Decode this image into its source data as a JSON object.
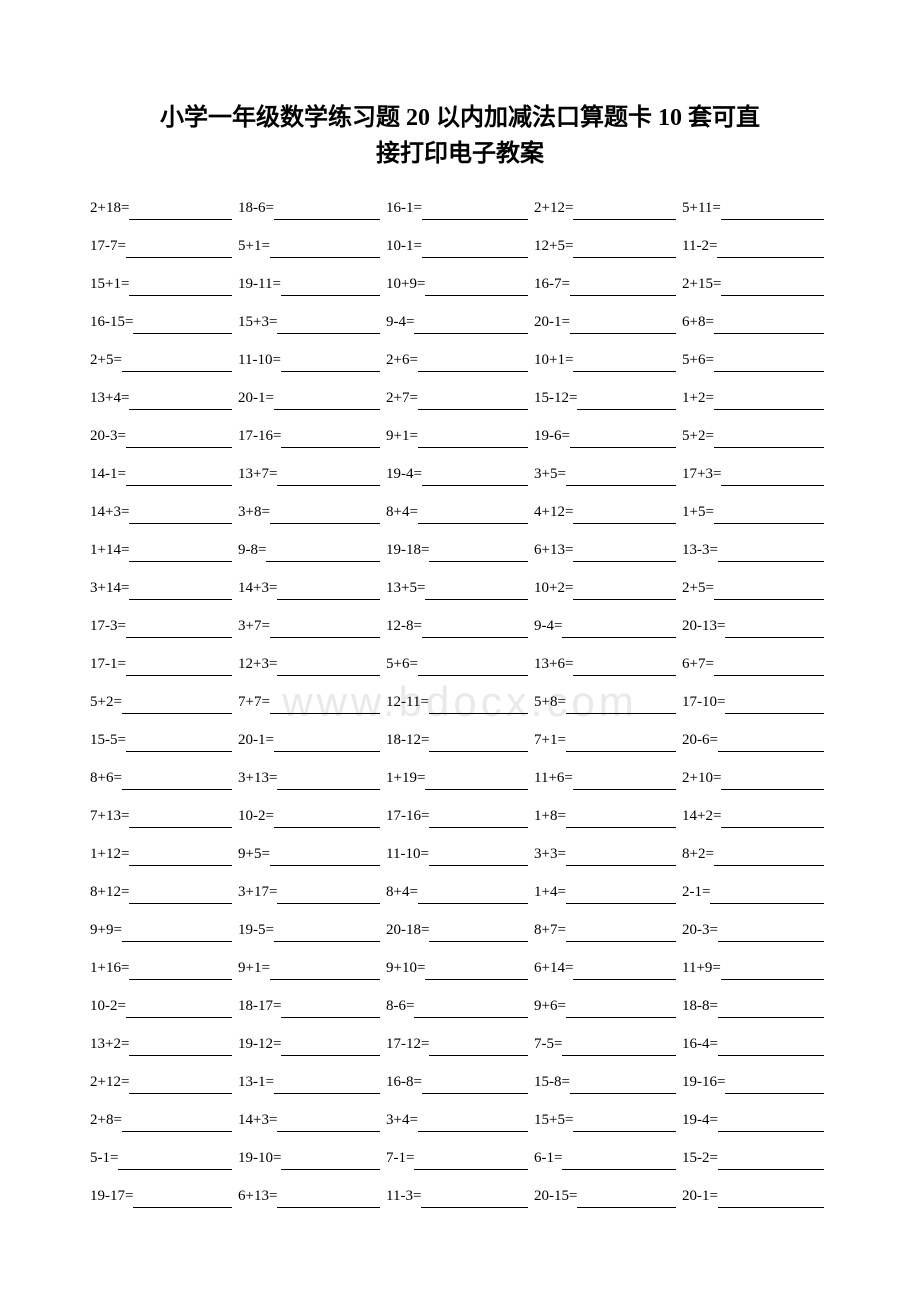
{
  "title_line1": "小学一年级数学练习题 20 以内加减法口算题卡 10 套可直",
  "title_line2": "接打印电子教案",
  "watermark": "www.bdocx.com",
  "rows": [
    [
      "2+18=",
      "18-6=",
      "16-1=",
      "2+12=",
      "5+11="
    ],
    [
      "17-7=",
      "5+1=",
      "10-1=",
      "12+5=",
      "11-2="
    ],
    [
      "15+1=",
      "19-11=",
      "10+9=",
      "16-7=",
      "2+15="
    ],
    [
      "16-15=",
      "15+3=",
      "9-4=",
      "20-1=",
      "6+8="
    ],
    [
      "2+5=",
      "11-10=",
      "2+6=",
      "10+1=",
      "5+6="
    ],
    [
      "13+4=",
      "20-1=",
      "2+7=",
      "15-12=",
      "1+2="
    ],
    [
      "20-3=",
      "17-16=",
      "9+1=",
      "19-6=",
      "5+2="
    ],
    [
      "14-1=",
      "13+7=",
      "19-4=",
      "3+5=",
      "17+3="
    ],
    [
      "14+3=",
      "3+8=",
      "8+4=",
      "4+12=",
      "1+5="
    ],
    [
      "1+14=",
      "9-8=",
      "19-18=",
      "6+13=",
      "13-3="
    ],
    [
      "3+14=",
      "14+3=",
      "13+5=",
      "10+2=",
      "2+5="
    ],
    [
      "17-3=",
      "3+7=",
      "12-8=",
      "9-4=",
      "20-13="
    ],
    [
      "17-1=",
      "12+3=",
      "5+6=",
      "13+6=",
      "6+7="
    ],
    [
      "5+2=",
      "7+7=",
      "12-11=",
      "5+8=",
      "17-10="
    ],
    [
      "15-5=",
      "20-1=",
      "18-12=",
      "7+1=",
      "20-6="
    ],
    [
      "8+6=",
      "3+13=",
      "1+19=",
      "11+6=",
      "2+10="
    ],
    [
      "7+13=",
      "10-2=",
      "17-16=",
      "1+8=",
      "14+2="
    ],
    [
      "1+12=",
      "9+5=",
      "11-10=",
      "3+3=",
      "8+2="
    ],
    [
      "8+12=",
      "3+17=",
      "8+4=",
      "1+4=",
      "2-1="
    ],
    [
      "9+9=",
      "19-5=",
      "20-18=",
      "8+7=",
      "20-3="
    ],
    [
      "1+16=",
      "9+1=",
      "9+10=",
      "6+14=",
      "11+9="
    ],
    [
      "10-2=",
      "18-17=",
      "8-6=",
      "9+6=",
      "18-8="
    ],
    [
      "13+2=",
      "19-12=",
      "17-12=",
      "7-5=",
      "16-4="
    ],
    [
      "2+12=",
      "13-1=",
      "16-8=",
      "15-8=",
      "19-16="
    ],
    [
      "2+8=",
      "14+3=",
      "3+4=",
      "15+5=",
      "19-4="
    ],
    [
      "5-1=",
      "19-10=",
      "7-1=",
      "6-1=",
      "15-2="
    ],
    [
      "19-17=",
      "6+13=",
      "11-3=",
      "20-15=",
      "20-1="
    ]
  ]
}
